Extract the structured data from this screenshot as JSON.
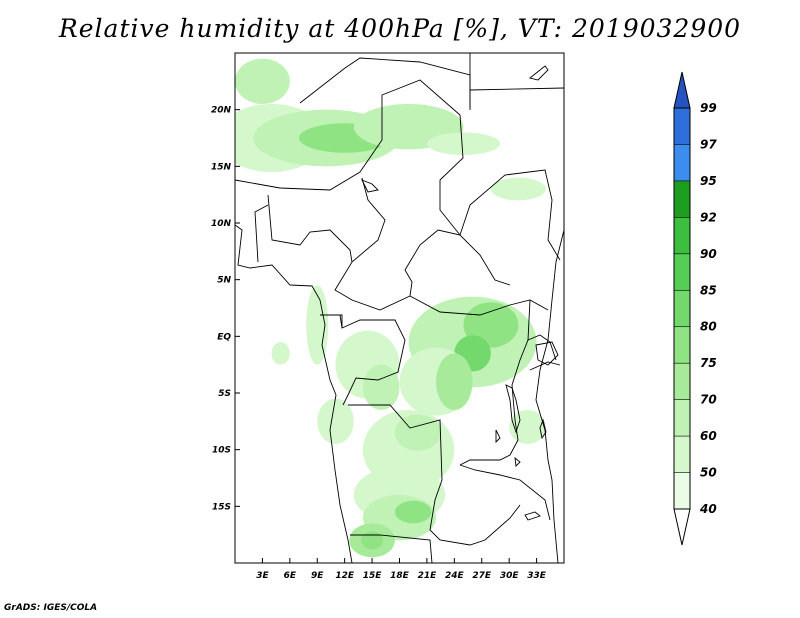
{
  "title": "Relative humidity at 400hPa [%], VT: 2019032900",
  "credit": "GrADS: IGES/COLA",
  "map": {
    "lon_range": [
      0,
      36
    ],
    "lat_range": [
      -20,
      25
    ],
    "lon_labels": [
      {
        "lon": 3,
        "label": "3E"
      },
      {
        "lon": 6,
        "label": "6E"
      },
      {
        "lon": 9,
        "label": "9E"
      },
      {
        "lon": 12,
        "label": "12E"
      },
      {
        "lon": 15,
        "label": "15E"
      },
      {
        "lon": 18,
        "label": "18E"
      },
      {
        "lon": 21,
        "label": "21E"
      },
      {
        "lon": 24,
        "label": "24E"
      },
      {
        "lon": 27,
        "label": "27E"
      },
      {
        "lon": 30,
        "label": "30E"
      },
      {
        "lon": 33,
        "label": "33E"
      }
    ],
    "lat_labels": [
      {
        "lat": 20,
        "label": "20N"
      },
      {
        "lat": 15,
        "label": "15N"
      },
      {
        "lat": 10,
        "label": "10N"
      },
      {
        "lat": 5,
        "label": "5N"
      },
      {
        "lat": 0,
        "label": "EQ"
      },
      {
        "lat": -5,
        "label": "5S"
      },
      {
        "lat": -10,
        "label": "10S"
      },
      {
        "lat": -15,
        "label": "15S"
      }
    ]
  },
  "colorbar": {
    "levels": [
      "40",
      "50",
      "60",
      "70",
      "75",
      "80",
      "85",
      "90",
      "92",
      "95",
      "97",
      "99"
    ],
    "colors": [
      "#eafbe6",
      "#d4f7cc",
      "#bff2b4",
      "#a7eb9a",
      "#8fe383",
      "#73d96c",
      "#56cd54",
      "#3cbe3e",
      "#1e9e1e",
      "#3d8df0",
      "#2f6fdb",
      "#2753c2"
    ],
    "below_color": "#ffffff"
  },
  "humidity_patches": [
    {
      "lon": 4,
      "lat": 17.5,
      "rx": 6,
      "ry": 3,
      "level": 1
    },
    {
      "lon": 10,
      "lat": 17.5,
      "rx": 8,
      "ry": 2.5,
      "level": 2
    },
    {
      "lon": 12,
      "lat": 17.5,
      "rx": 5,
      "ry": 1.3,
      "level": 4
    },
    {
      "lon": 19,
      "lat": 18.5,
      "rx": 6,
      "ry": 2,
      "level": 2
    },
    {
      "lon": 3,
      "lat": 22.5,
      "rx": 3,
      "ry": 2,
      "level": 2
    },
    {
      "lon": 25,
      "lat": 17,
      "rx": 4,
      "ry": 1,
      "level": 1
    },
    {
      "lon": 31,
      "lat": 13,
      "rx": 3,
      "ry": 1,
      "level": 1
    },
    {
      "lon": 26,
      "lat": -0.5,
      "rx": 7,
      "ry": 4,
      "level": 2
    },
    {
      "lon": 28,
      "lat": 1,
      "rx": 3,
      "ry": 2,
      "level": 4
    },
    {
      "lon": 26,
      "lat": -1.5,
      "rx": 2,
      "ry": 1.6,
      "level": 5
    },
    {
      "lon": 22,
      "lat": -4,
      "rx": 4,
      "ry": 3,
      "level": 1
    },
    {
      "lon": 24,
      "lat": -4,
      "rx": 2,
      "ry": 2.5,
      "level": 3
    },
    {
      "lon": 14.5,
      "lat": -2.5,
      "rx": 3.5,
      "ry": 3,
      "level": 1
    },
    {
      "lon": 16,
      "lat": -4.5,
      "rx": 2,
      "ry": 2,
      "level": 2
    },
    {
      "lon": 19,
      "lat": -10,
      "rx": 5,
      "ry": 3.5,
      "level": 1
    },
    {
      "lon": 20,
      "lat": -8.5,
      "rx": 2.5,
      "ry": 1.6,
      "level": 2
    },
    {
      "lon": 18,
      "lat": -14,
      "rx": 5,
      "ry": 2.5,
      "level": 1
    },
    {
      "lon": 18,
      "lat": -16,
      "rx": 4,
      "ry": 2,
      "level": 2
    },
    {
      "lon": 19.5,
      "lat": -15.5,
      "rx": 2,
      "ry": 1,
      "level": 4
    },
    {
      "lon": 15,
      "lat": -18,
      "rx": 2.5,
      "ry": 1.5,
      "level": 3
    },
    {
      "lon": 15,
      "lat": -18,
      "rx": 1.2,
      "ry": 0.8,
      "level": 4
    },
    {
      "lon": 11,
      "lat": -7.5,
      "rx": 2,
      "ry": 2,
      "level": 1
    },
    {
      "lon": 9,
      "lat": 1,
      "rx": 1.2,
      "ry": 3.5,
      "level": 1
    },
    {
      "lon": 5,
      "lat": -1.5,
      "rx": 1,
      "ry": 1,
      "level": 1
    },
    {
      "lon": 32,
      "lat": -8,
      "rx": 2,
      "ry": 1.5,
      "level": 1
    }
  ]
}
